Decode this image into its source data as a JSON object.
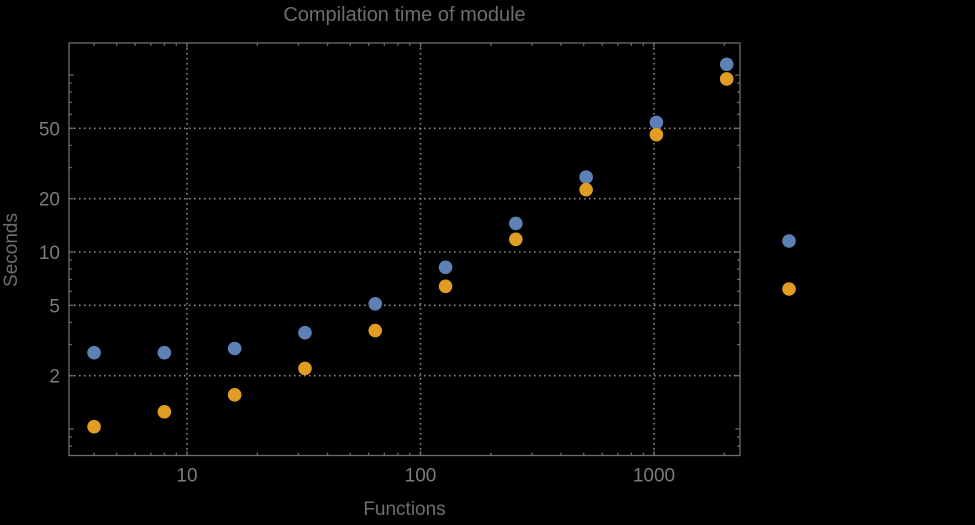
{
  "figure": {
    "title": "Compilation time of module",
    "xlabel": "Functions",
    "ylabel": "Seconds"
  },
  "colors": {
    "background": "#000000",
    "series_blue": "#5E81B5",
    "series_orange": "#E19C24",
    "frame": "#6d6d6d",
    "grid": "#868686",
    "tick_text": "#7c7c7c",
    "title_text": "#6e6e6e"
  },
  "chart_data": {
    "type": "scatter",
    "title": "Compilation time of module",
    "xlabel": "Functions",
    "ylabel": "Seconds",
    "x_scale": "log",
    "y_scale": "log",
    "xlim": [
      3.2,
      2300
    ],
    "ylim": [
      0.72,
      152
    ],
    "grid": "dotted gray lines at labeled major ticks",
    "legend_position": "outside right edge, marker dots only (labels not visible)",
    "x_ticks": [
      10,
      100,
      1000
    ],
    "x_tick_labels": [
      "10",
      "100",
      "1000"
    ],
    "y_ticks": [
      50,
      20,
      10,
      5,
      2
    ],
    "y_tick_labels": [
      "50",
      "20",
      "10",
      "5",
      "2"
    ],
    "y_ticks_unlabeled": [
      1,
      100
    ],
    "x": [
      4,
      8,
      16,
      32,
      64,
      128,
      256,
      512,
      1024,
      2048
    ],
    "series": [
      {
        "name": "blue",
        "color": "#5E81B5",
        "values": [
          2.7,
          2.7,
          2.85,
          3.5,
          5.1,
          8.2,
          14.5,
          26.5,
          54,
          115
        ]
      },
      {
        "name": "orange",
        "color": "#E19C24",
        "values": [
          1.03,
          1.25,
          1.56,
          2.2,
          3.6,
          6.4,
          11.8,
          22.5,
          46,
          95
        ]
      }
    ],
    "legend": {
      "markers": [
        {
          "name": "blue",
          "icon": "blue-dot-icon",
          "color": "#5E81B5"
        },
        {
          "name": "orange",
          "icon": "orange-dot-icon",
          "color": "#E19C24"
        }
      ]
    }
  }
}
